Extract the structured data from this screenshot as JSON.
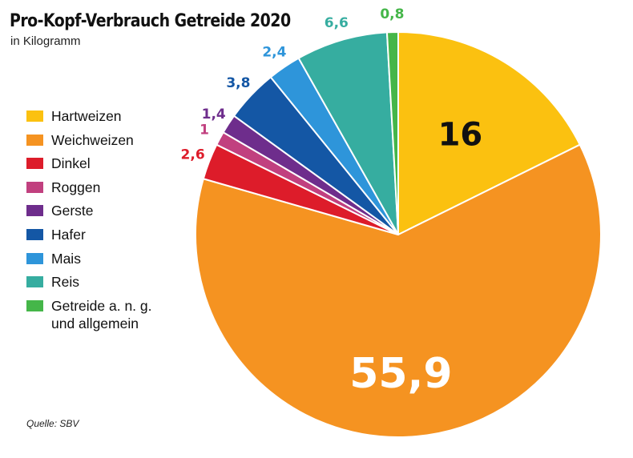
{
  "title": "Pro-Kopf-Verbrauch Getreide 2020",
  "subtitle": "in Kilogramm",
  "source": "Quelle: SBV",
  "chart_data": {
    "type": "pie",
    "title": "Pro-Kopf-Verbrauch Getreide 2020",
    "subtitle": "in Kilogramm",
    "legend_position": "left",
    "slices": [
      {
        "name": "Hartweizen",
        "value": 16,
        "label": "16",
        "color": "#FBC110"
      },
      {
        "name": "Weichweizen",
        "value": 55.9,
        "label": "55,9",
        "color": "#F59321"
      },
      {
        "name": "Dinkel",
        "value": 2.6,
        "label": "2,6",
        "color": "#DD1C2A"
      },
      {
        "name": "Roggen",
        "value": 1,
        "label": "1",
        "color": "#C1407F"
      },
      {
        "name": "Gerste",
        "value": 1.4,
        "label": "1,4",
        "color": "#6E2D8C"
      },
      {
        "name": "Hafer",
        "value": 3.8,
        "label": "3,8",
        "color": "#1457A5"
      },
      {
        "name": "Mais",
        "value": 2.4,
        "label": "2,4",
        "color": "#2E95DA"
      },
      {
        "name": "Reis",
        "value": 6.6,
        "label": "6,6",
        "color": "#36ADA0"
      },
      {
        "name": "Getreide a. n. g.\nund allgemein",
        "value": 0.8,
        "label": "0,8",
        "color": "#45B649"
      }
    ]
  }
}
